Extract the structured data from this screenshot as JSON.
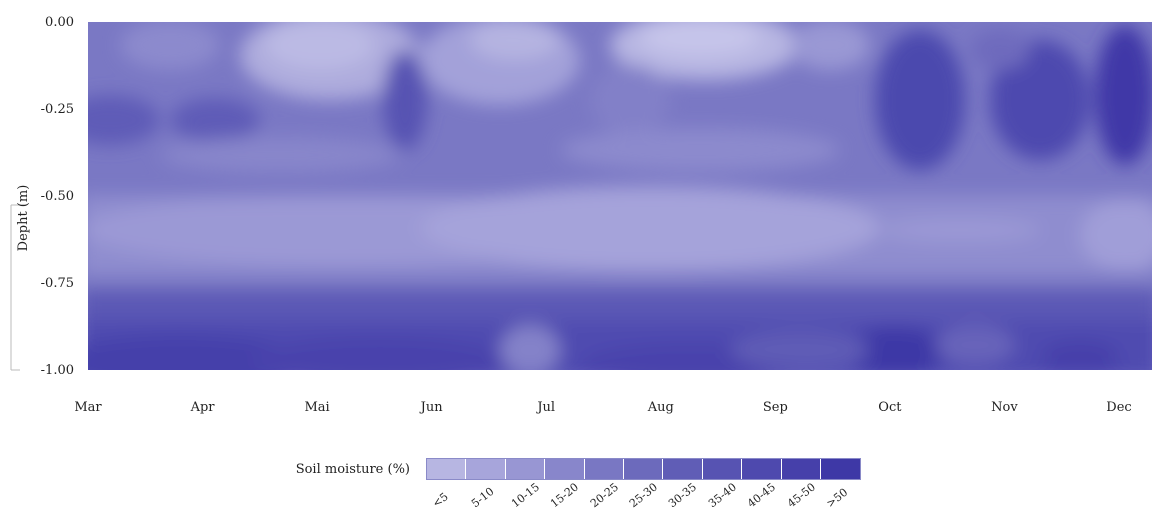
{
  "chart_data": {
    "type": "heatmap",
    "title": "",
    "xlabel": "",
    "ylabel": "Depht (m)",
    "x_categories": [
      "Mar",
      "Apr",
      "Mai",
      "Jun",
      "Jul",
      "Aug",
      "Sep",
      "Oct",
      "Nov",
      "Dec"
    ],
    "y_ticks": [
      "0.00",
      "-0.25",
      "-0.50",
      "-0.75",
      "-1.00"
    ],
    "y_values": [
      0.0,
      -0.25,
      -0.5,
      -0.75,
      -1.0
    ],
    "ylim": [
      -1.0,
      0.0
    ],
    "value_label": "Soil moisture (%)",
    "color_classes": [
      "<5",
      "5-10",
      "10-15",
      "15-20",
      "20-25",
      "25-30",
      "30-35",
      "35-40",
      "40-45",
      "45-50",
      ">50"
    ],
    "colors": [
      "#b7b6e2",
      "#a7a5db",
      "#9896d3",
      "#8886cb",
      "#7977c3",
      "#6c6abc",
      "#605db6",
      "#5753b2",
      "#4e49ae",
      "#4640aa",
      "#3e38a6"
    ],
    "grid": false,
    "legend_position": "bottom"
  }
}
